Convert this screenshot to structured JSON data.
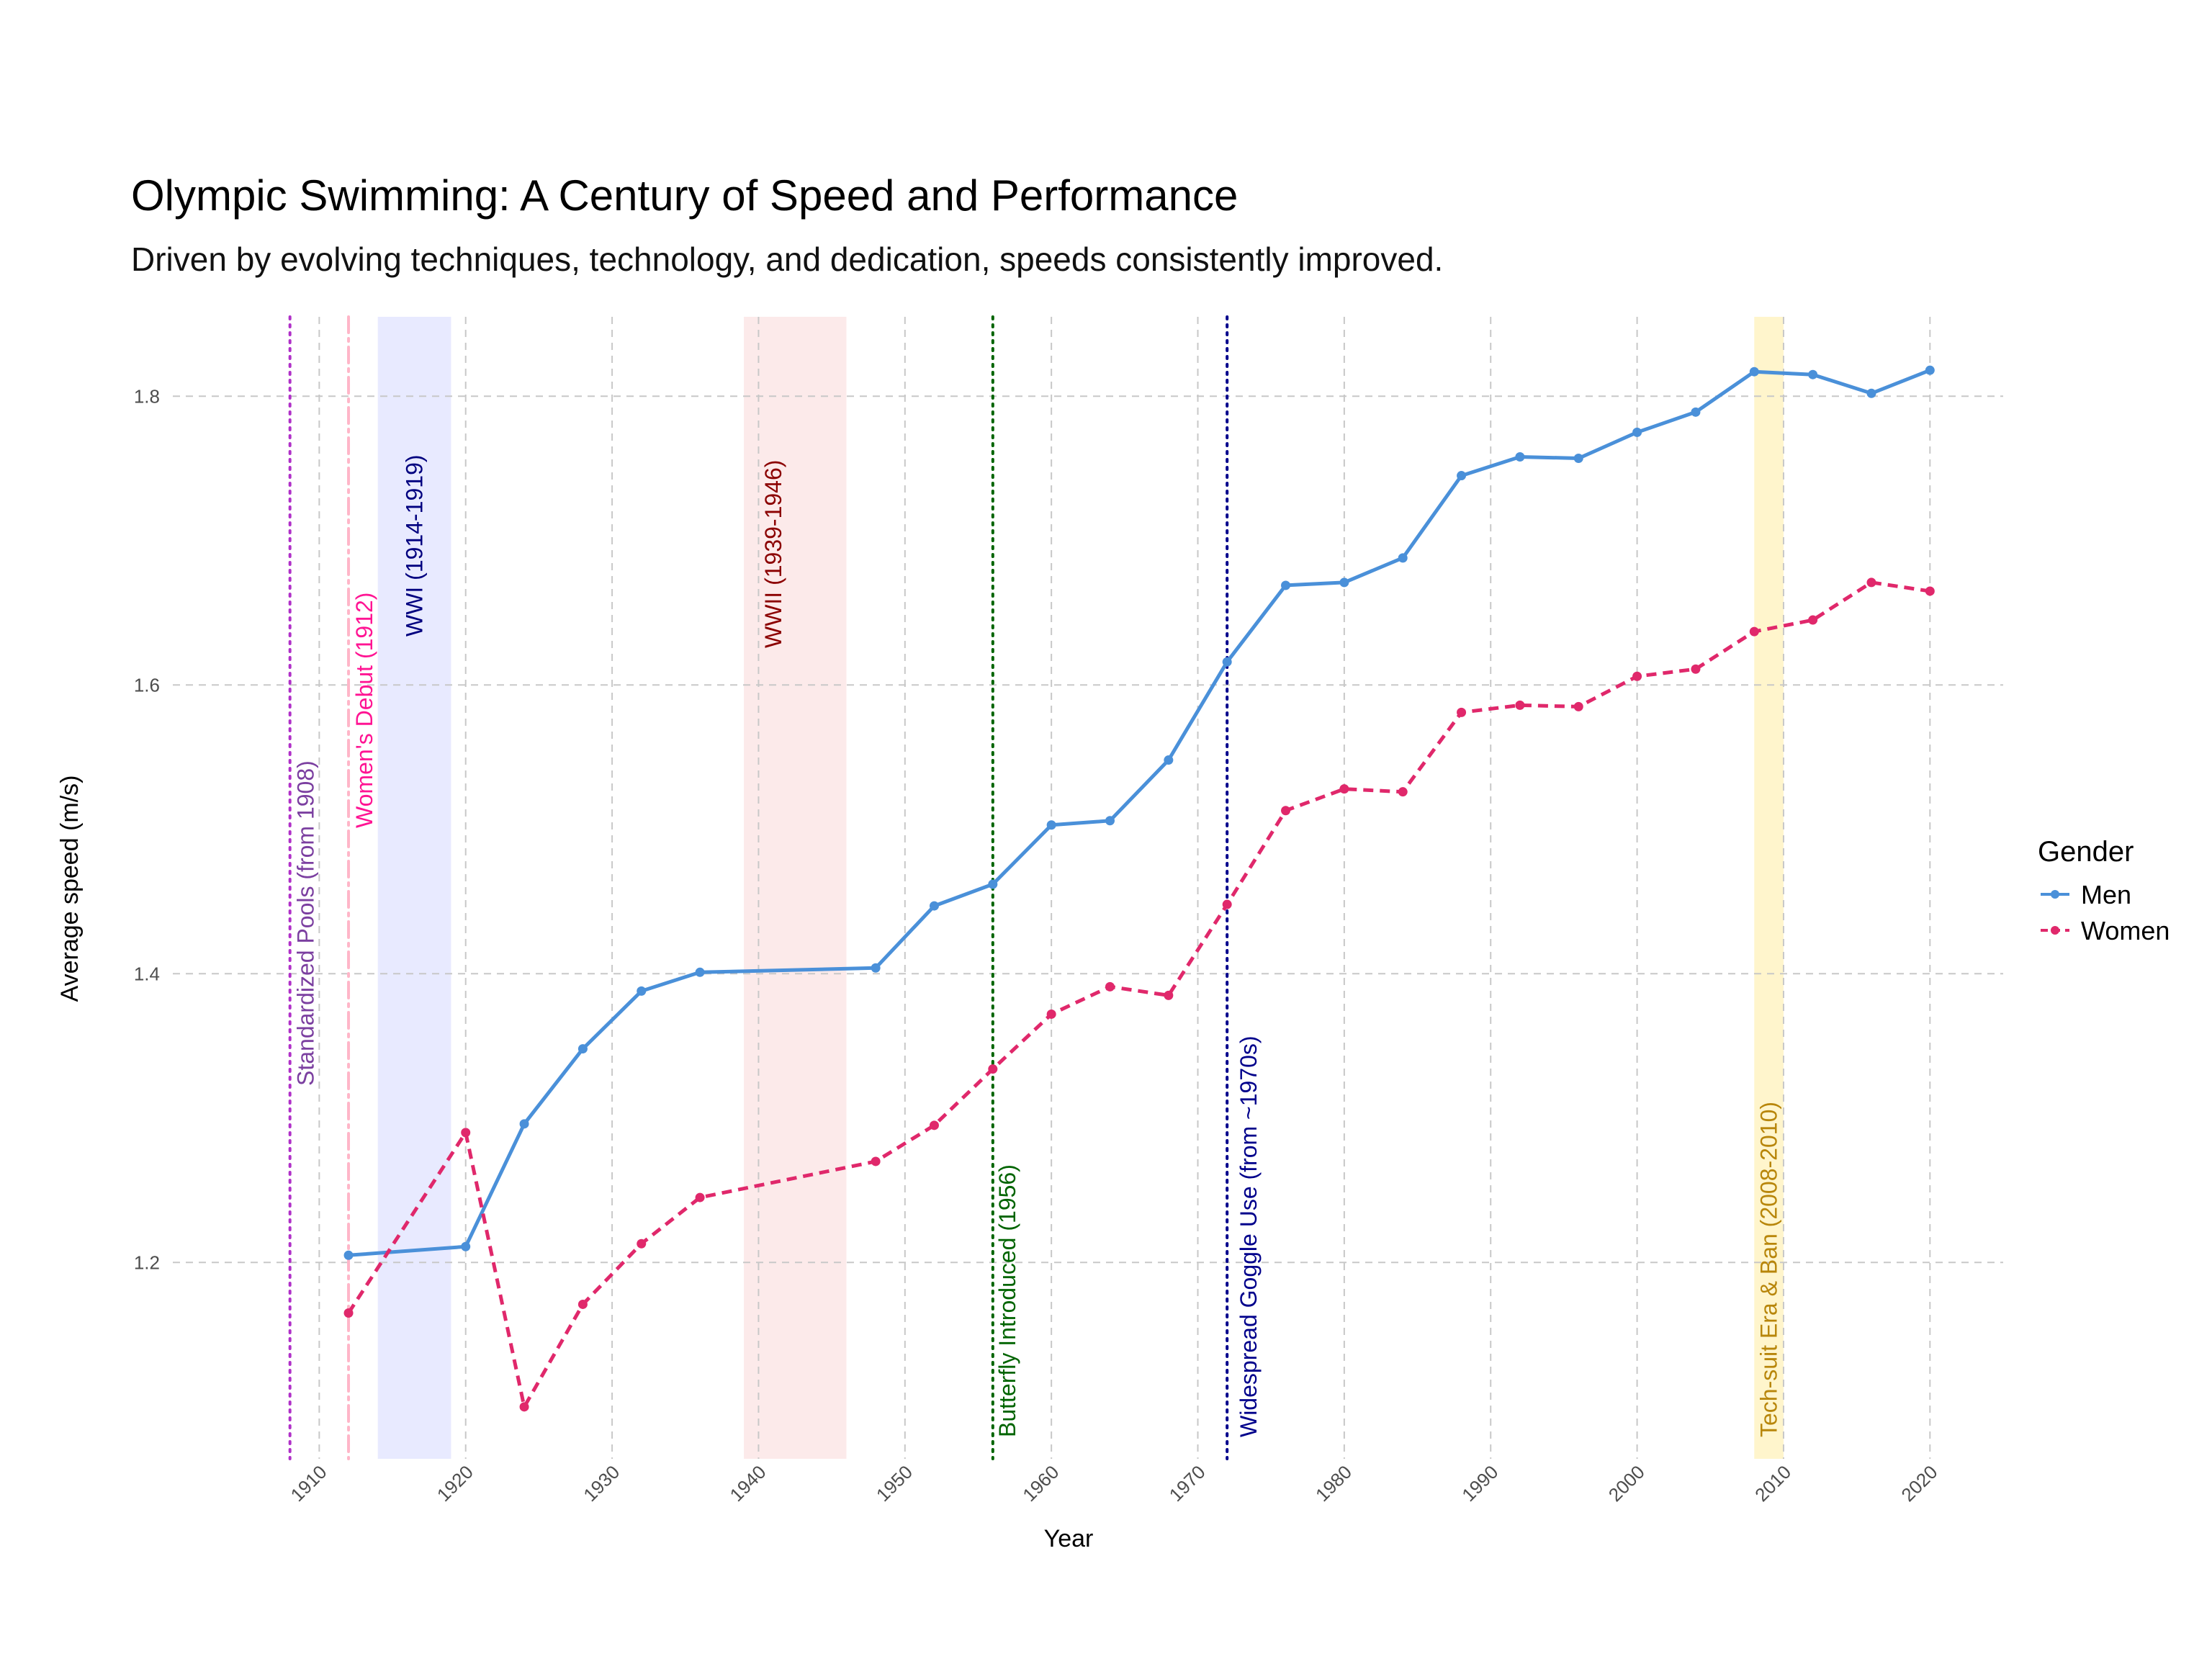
{
  "chart_data": {
    "type": "line",
    "title": "Olympic Swimming: A Century of Speed and Performance",
    "subtitle": "Driven by evolving techniques, technology, and dedication, speeds consistently improved.",
    "xlabel": "Year",
    "ylabel": "Average speed (m/s)",
    "xlim": [
      1900,
      2025
    ],
    "ylim": [
      1.064,
      1.855
    ],
    "x_ticks": [
      1910,
      1920,
      1930,
      1940,
      1950,
      1960,
      1970,
      1980,
      1990,
      2000,
      2010,
      2020
    ],
    "y_ticks": [
      1.2,
      1.4,
      1.6,
      1.8
    ],
    "y_tick_labels": [
      "1.2",
      "1.4",
      "1.6",
      "1.8"
    ],
    "grid": true,
    "legend": {
      "title": "Gender",
      "position": "right"
    },
    "series": [
      {
        "name": "Men",
        "color": "#4A90D9",
        "dash": "solid",
        "x": [
          1912,
          1920,
          1924,
          1928,
          1932,
          1936,
          1948,
          1952,
          1956,
          1960,
          1964,
          1968,
          1972,
          1976,
          1980,
          1984,
          1988,
          1992,
          1996,
          2000,
          2004,
          2008,
          2012,
          2016,
          2020
        ],
        "y": [
          1.205,
          1.211,
          1.296,
          1.348,
          1.388,
          1.401,
          1.404,
          1.447,
          1.462,
          1.503,
          1.506,
          1.548,
          1.616,
          1.669,
          1.671,
          1.688,
          1.745,
          1.758,
          1.757,
          1.775,
          1.789,
          1.817,
          1.815,
          1.802,
          1.818
        ]
      },
      {
        "name": "Women",
        "color": "#E0286B",
        "dash": "dashed",
        "x": [
          1912,
          1920,
          1924,
          1928,
          1932,
          1936,
          1948,
          1952,
          1956,
          1960,
          1964,
          1968,
          1972,
          1976,
          1980,
          1984,
          1988,
          1992,
          1996,
          2000,
          2004,
          2008,
          2012,
          2016,
          2020
        ],
        "y": [
          1.165,
          1.29,
          1.1,
          1.171,
          1.213,
          1.245,
          1.27,
          1.295,
          1.334,
          1.372,
          1.391,
          1.385,
          1.448,
          1.513,
          1.528,
          1.526,
          1.581,
          1.586,
          1.585,
          1.606,
          1.611,
          1.637,
          1.645,
          1.671,
          1.665
        ]
      }
    ],
    "bands": [
      {
        "name": "wwi",
        "from": 1914,
        "to": 1919,
        "color": "#E8EAFF",
        "label": "WWI (1914-1919)",
        "label_color": "#00007F"
      },
      {
        "name": "wwii",
        "from": 1939,
        "to": 1946,
        "color": "#FCEAEA",
        "label": "WWII (1939-1946)",
        "label_color": "#8B0000"
      },
      {
        "name": "techsuit",
        "from": 2008,
        "to": 2010,
        "color": "#FFF5CC",
        "label": "Tech-suit Era & Ban (2008-2010)",
        "label_color": "#B8860B"
      }
    ],
    "vlines": [
      {
        "name": "standardized-pools",
        "x": 1908,
        "color": "#B030C8",
        "style": "dotted",
        "label": "Standardized Pools (from 1908)",
        "label_color": "#7B3FA0"
      },
      {
        "name": "womens-debut",
        "x": 1912,
        "color": "#FFB6C8",
        "style": "dashdot",
        "label": "Women's Debut (1912)",
        "label_color": "#FF1493"
      },
      {
        "name": "butterfly",
        "x": 1956,
        "color": "#006400",
        "style": "dotted",
        "label": "Butterfly Introduced (1956)",
        "label_color": "#006400"
      },
      {
        "name": "goggles",
        "x": 1972,
        "color": "#00008B",
        "style": "dotted",
        "label": "Widespread Goggle Use (from ~1970s)",
        "label_color": "#00008B"
      }
    ]
  }
}
